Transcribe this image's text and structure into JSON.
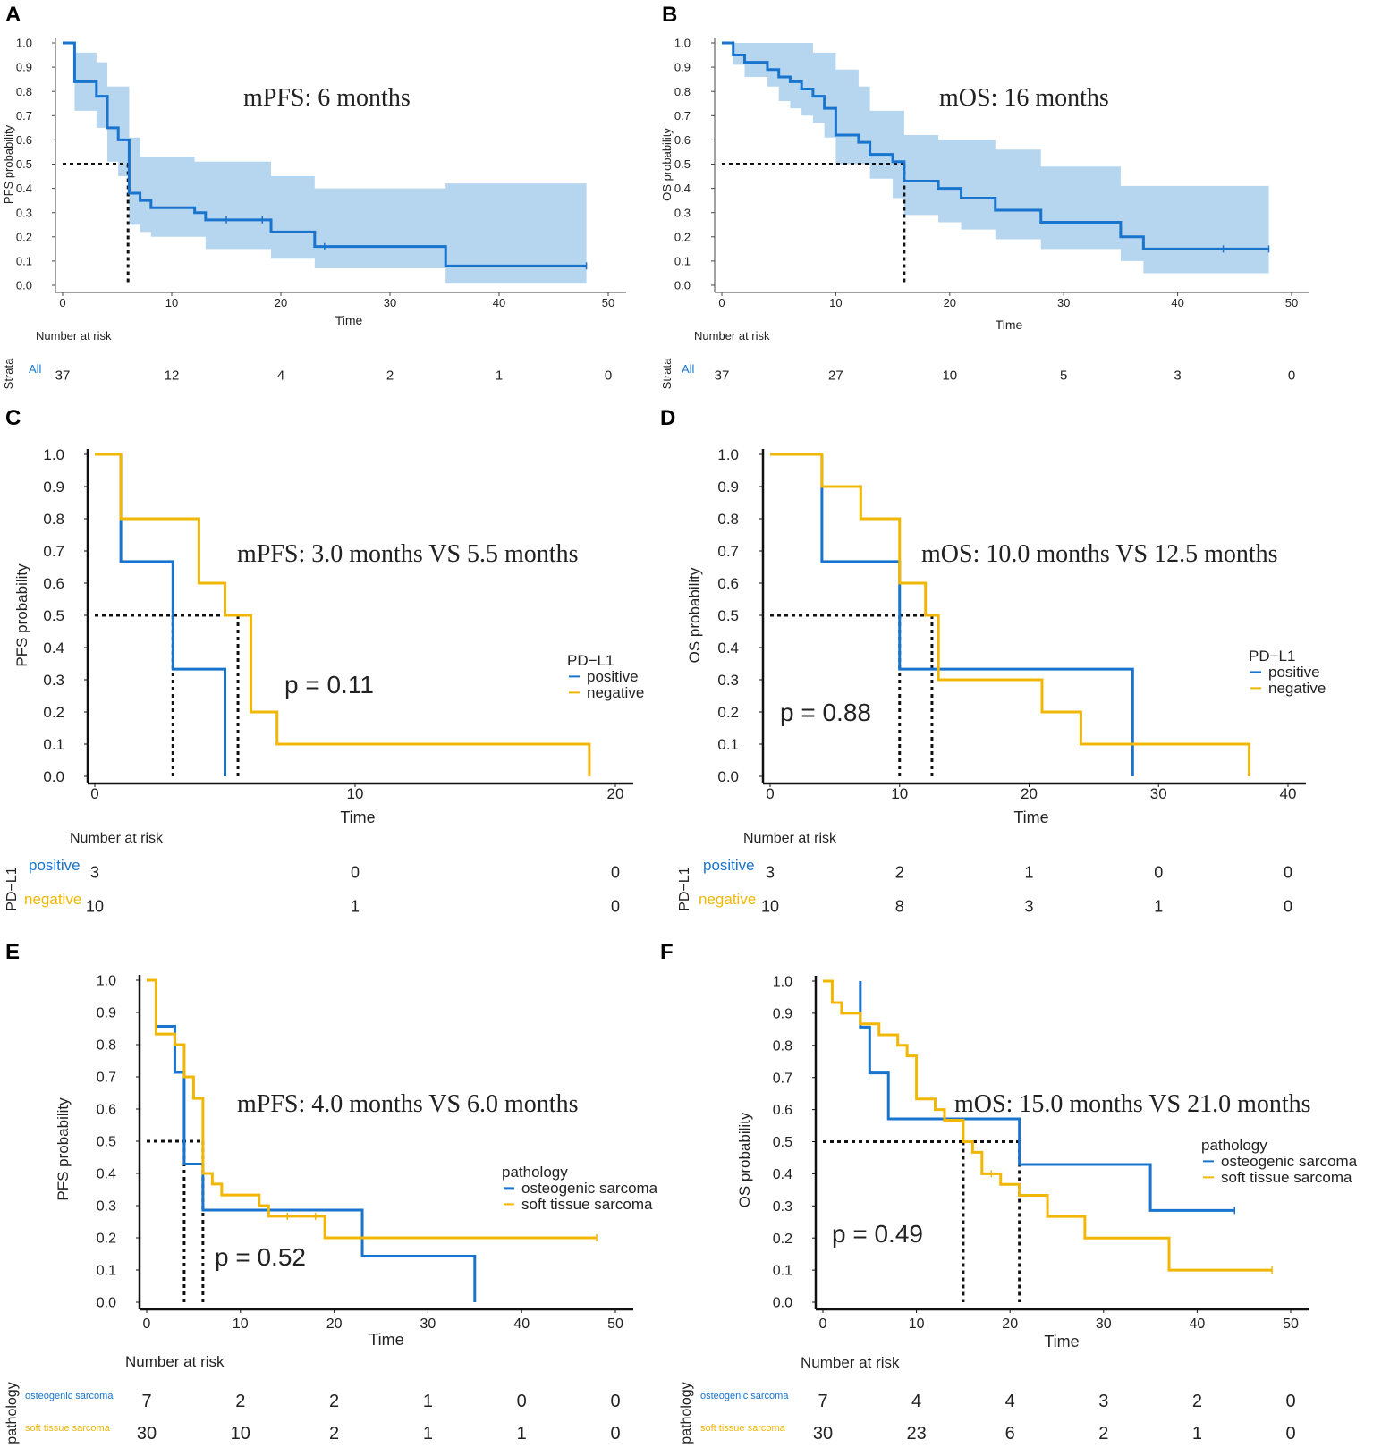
{
  "colors": {
    "blue": "#1874CD",
    "yellow": "#F2B705",
    "band": "#B6D5EF",
    "black": "#111111"
  },
  "chart_data": [
    {
      "id": "A",
      "type": "line",
      "panel_label": "A",
      "title": "",
      "annotation": "mPFS: 6 months",
      "pvalue": "",
      "xlabel": "Time",
      "ylabel": "PFS probability",
      "xlim": [
        0,
        50
      ],
      "ylim": [
        0,
        1
      ],
      "xticks": [
        0,
        10,
        20,
        30,
        40,
        50
      ],
      "yticks": [
        "0.0",
        "0.1",
        "0.2",
        "0.3",
        "0.4",
        "0.5",
        "0.6",
        "0.7",
        "0.8",
        "0.9",
        "1.0"
      ],
      "median_lines": [
        6
      ],
      "legend_title": "",
      "risk_title": "Number at risk",
      "strata_title": "Strata",
      "risk_times": [
        0,
        10,
        20,
        30,
        40,
        50
      ],
      "series": [
        {
          "name": "All",
          "color": "blue",
          "steps": [
            [
              0,
              1.0
            ],
            [
              1.1,
              0.84
            ],
            [
              3.1,
              0.78
            ],
            [
              4.1,
              0.65
            ],
            [
              5.1,
              0.6
            ],
            [
              6.1,
              0.38
            ],
            [
              7.1,
              0.35
            ],
            [
              8.1,
              0.32
            ],
            [
              12.1,
              0.3
            ],
            [
              13.1,
              0.27
            ],
            [
              19.1,
              0.22
            ],
            [
              23.1,
              0.16
            ],
            [
              35.1,
              0.08
            ],
            [
              48,
              0.08
            ]
          ],
          "ci_upper": [
            [
              0,
              1.0
            ],
            [
              1.1,
              0.96
            ],
            [
              3.1,
              0.92
            ],
            [
              4.1,
              0.82
            ],
            [
              6.1,
              0.61
            ],
            [
              7.1,
              0.53
            ],
            [
              12.1,
              0.51
            ],
            [
              19.1,
              0.45
            ],
            [
              23.1,
              0.4
            ],
            [
              35.1,
              0.42
            ],
            [
              48,
              0.42
            ]
          ],
          "ci_lower": [
            [
              0,
              1.0
            ],
            [
              1.1,
              0.72
            ],
            [
              3.1,
              0.65
            ],
            [
              4.1,
              0.51
            ],
            [
              5.1,
              0.45
            ],
            [
              6.1,
              0.25
            ],
            [
              7.1,
              0.22
            ],
            [
              8.1,
              0.2
            ],
            [
              13.1,
              0.15
            ],
            [
              19.1,
              0.11
            ],
            [
              23.1,
              0.07
            ],
            [
              35.1,
              0.01
            ],
            [
              48,
              0.01
            ]
          ],
          "censor_marks": [
            [
              15,
              0.27
            ],
            [
              18.3,
              0.27
            ],
            [
              24,
              0.16
            ],
            [
              48,
              0.08
            ]
          ],
          "risk": [
            "37",
            "12",
            "4",
            "2",
            "1",
            "0"
          ]
        }
      ]
    },
    {
      "id": "B",
      "type": "line",
      "panel_label": "B",
      "title": "",
      "annotation": "mOS: 16 months",
      "pvalue": "",
      "xlabel": "Time",
      "ylabel": "OS probability",
      "xlim": [
        0,
        50
      ],
      "ylim": [
        0,
        1
      ],
      "xticks": [
        0,
        10,
        20,
        30,
        40,
        50
      ],
      "yticks": [
        "0.0",
        "0.1",
        "0.2",
        "0.3",
        "0.4",
        "0.5",
        "0.6",
        "0.7",
        "0.8",
        "0.9",
        "1.0"
      ],
      "median_lines": [
        16
      ],
      "legend_title": "",
      "risk_title": "Number at risk",
      "strata_title": "Strata",
      "risk_times": [
        0,
        10,
        20,
        30,
        40,
        50
      ],
      "series": [
        {
          "name": "All",
          "color": "blue",
          "steps": [
            [
              0,
              1.0
            ],
            [
              1,
              0.95
            ],
            [
              2,
              0.92
            ],
            [
              4,
              0.89
            ],
            [
              5,
              0.86
            ],
            [
              6,
              0.84
            ],
            [
              7,
              0.81
            ],
            [
              8,
              0.78
            ],
            [
              9,
              0.73
            ],
            [
              10,
              0.62
            ],
            [
              12,
              0.59
            ],
            [
              13,
              0.54
            ],
            [
              15,
              0.51
            ],
            [
              16,
              0.43
            ],
            [
              19,
              0.4
            ],
            [
              21,
              0.36
            ],
            [
              24,
              0.31
            ],
            [
              28,
              0.26
            ],
            [
              35,
              0.2
            ],
            [
              37,
              0.15
            ],
            [
              48,
              0.15
            ]
          ],
          "ci_upper": [
            [
              0,
              1.0
            ],
            [
              6,
              1.0
            ],
            [
              8,
              0.96
            ],
            [
              10,
              0.89
            ],
            [
              12,
              0.82
            ],
            [
              13,
              0.72
            ],
            [
              16,
              0.62
            ],
            [
              19,
              0.6
            ],
            [
              24,
              0.56
            ],
            [
              28,
              0.49
            ],
            [
              35,
              0.41
            ],
            [
              48,
              0.41
            ]
          ],
          "ci_lower": [
            [
              0,
              1.0
            ],
            [
              1,
              0.91
            ],
            [
              2,
              0.86
            ],
            [
              4,
              0.82
            ],
            [
              5,
              0.76
            ],
            [
              6,
              0.73
            ],
            [
              7,
              0.7
            ],
            [
              8,
              0.67
            ],
            [
              9,
              0.61
            ],
            [
              10,
              0.5
            ],
            [
              13,
              0.44
            ],
            [
              15,
              0.36
            ],
            [
              16,
              0.29
            ],
            [
              19,
              0.26
            ],
            [
              21,
              0.23
            ],
            [
              24,
              0.19
            ],
            [
              28,
              0.15
            ],
            [
              35,
              0.1
            ],
            [
              37,
              0.05
            ],
            [
              48,
              0.05
            ]
          ],
          "censor_marks": [
            [
              44,
              0.15
            ],
            [
              48,
              0.15
            ]
          ],
          "risk": [
            "37",
            "27",
            "10",
            "5",
            "3",
            "0"
          ]
        }
      ]
    },
    {
      "id": "C",
      "type": "line",
      "panel_label": "C",
      "title": "",
      "annotation": "mPFS: 3.0 months VS 5.5 months",
      "pvalue": "p = 0.11",
      "xlabel": "Time",
      "ylabel": "PFS probability",
      "xlim": [
        0,
        20
      ],
      "ylim": [
        0,
        1
      ],
      "xticks": [
        0,
        10,
        20
      ],
      "yticks": [
        "0.0",
        "0.1",
        "0.2",
        "0.3",
        "0.4",
        "0.5",
        "0.6",
        "0.7",
        "0.8",
        "0.9",
        "1.0"
      ],
      "median_lines": [
        3.0,
        5.5
      ],
      "legend_title": "PD−L1",
      "risk_title": "Number at risk",
      "strata_title": "PD−L1",
      "risk_times": [
        0,
        10,
        20
      ],
      "series": [
        {
          "name": "positive",
          "color": "blue",
          "steps": [
            [
              1,
              1.0
            ],
            [
              1,
              0.667
            ],
            [
              3,
              0.333
            ],
            [
              5,
              0.0
            ]
          ],
          "risk": [
            "3",
            "0",
            "0"
          ]
        },
        {
          "name": "negative",
          "color": "yellow",
          "steps": [
            [
              0,
              1.0
            ],
            [
              1,
              0.8
            ],
            [
              4,
              0.6
            ],
            [
              5,
              0.5
            ],
            [
              6,
              0.2
            ],
            [
              7,
              0.1
            ],
            [
              19,
              0.0
            ]
          ],
          "risk": [
            "10",
            "1",
            "0"
          ]
        }
      ]
    },
    {
      "id": "D",
      "type": "line",
      "panel_label": "D",
      "title": "",
      "annotation": "mOS: 10.0 months VS 12.5 months",
      "pvalue": "p = 0.88",
      "xlabel": "Time",
      "ylabel": "OS probability",
      "xlim": [
        0,
        40
      ],
      "ylim": [
        0,
        1
      ],
      "xticks": [
        0,
        10,
        20,
        30,
        40
      ],
      "yticks": [
        "0.0",
        "0.1",
        "0.2",
        "0.3",
        "0.4",
        "0.5",
        "0.6",
        "0.7",
        "0.8",
        "0.9",
        "1.0"
      ],
      "median_lines": [
        10.0,
        12.5
      ],
      "legend_title": "PD−L1",
      "risk_title": "Number at risk",
      "strata_title": "PD−L1",
      "risk_times": [
        0,
        10,
        20,
        30,
        40
      ],
      "series": [
        {
          "name": "positive",
          "color": "blue",
          "steps": [
            [
              4,
              1.0
            ],
            [
              4,
              0.667
            ],
            [
              10,
              0.333
            ],
            [
              28,
              0.0
            ]
          ],
          "risk": [
            "3",
            "2",
            "1",
            "0",
            "0"
          ]
        },
        {
          "name": "negative",
          "color": "yellow",
          "steps": [
            [
              0,
              1.0
            ],
            [
              4,
              0.9
            ],
            [
              7,
              0.8
            ],
            [
              10,
              0.6
            ],
            [
              12,
              0.5
            ],
            [
              13,
              0.3
            ],
            [
              21,
              0.2
            ],
            [
              24,
              0.1
            ],
            [
              37,
              0.0
            ]
          ],
          "risk": [
            "10",
            "8",
            "3",
            "1",
            "0"
          ]
        }
      ]
    },
    {
      "id": "E",
      "type": "line",
      "panel_label": "E",
      "title": "",
      "annotation": "mPFS: 4.0 months VS 6.0 months",
      "pvalue": "p = 0.52",
      "xlabel": "Time",
      "ylabel": "PFS probability",
      "xlim": [
        0,
        50
      ],
      "ylim": [
        0,
        1
      ],
      "xticks": [
        0,
        10,
        20,
        30,
        40,
        50
      ],
      "yticks": [
        "0.0",
        "0.1",
        "0.2",
        "0.3",
        "0.4",
        "0.5",
        "0.6",
        "0.7",
        "0.8",
        "0.9",
        "1.0"
      ],
      "median_lines": [
        4.0,
        6.0
      ],
      "legend_title": "pathology",
      "risk_title": "Number at risk",
      "strata_title": "pathology",
      "risk_times": [
        0,
        10,
        20,
        30,
        40,
        50
      ],
      "series": [
        {
          "name": "osteogenic sarcoma",
          "color": "blue",
          "steps": [
            [
              1,
              1.0
            ],
            [
              1,
              0.857
            ],
            [
              3,
              0.714
            ],
            [
              4,
              0.429
            ],
            [
              6,
              0.286
            ],
            [
              23,
              0.143
            ],
            [
              35,
              0.0
            ]
          ],
          "censor_marks": [],
          "risk": [
            "7",
            "2",
            "2",
            "1",
            "0",
            "0"
          ]
        },
        {
          "name": "soft tissue sarcoma",
          "color": "yellow",
          "steps": [
            [
              0,
              1.0
            ],
            [
              1,
              0.833
            ],
            [
              3,
              0.8
            ],
            [
              4,
              0.7
            ],
            [
              5,
              0.633
            ],
            [
              6,
              0.4
            ],
            [
              7,
              0.367
            ],
            [
              8,
              0.333
            ],
            [
              12,
              0.3
            ],
            [
              13,
              0.267
            ],
            [
              19,
              0.2
            ],
            [
              48,
              0.2
            ]
          ],
          "censor_marks": [
            [
              15,
              0.267
            ],
            [
              18,
              0.267
            ],
            [
              48,
              0.2
            ]
          ],
          "risk": [
            "30",
            "10",
            "2",
            "1",
            "1",
            "0"
          ]
        }
      ]
    },
    {
      "id": "F",
      "type": "line",
      "panel_label": "F",
      "title": "",
      "annotation": "mOS: 15.0 months VS 21.0 months",
      "pvalue": "p = 0.49",
      "xlabel": "Time",
      "ylabel": "OS probability",
      "xlim": [
        0,
        50
      ],
      "ylim": [
        0,
        1
      ],
      "xticks": [
        0,
        10,
        20,
        30,
        40,
        50
      ],
      "yticks": [
        "0.0",
        "0.1",
        "0.2",
        "0.3",
        "0.4",
        "0.5",
        "0.6",
        "0.7",
        "0.8",
        "0.9",
        "1.0"
      ],
      "median_lines": [
        15.0,
        21.0
      ],
      "legend_title": "pathology",
      "risk_title": "Number at risk",
      "strata_title": "pathology",
      "risk_times": [
        0,
        10,
        20,
        30,
        40,
        50
      ],
      "series": [
        {
          "name": "osteogenic sarcoma",
          "color": "blue",
          "steps": [
            [
              4,
              1.0
            ],
            [
              4,
              0.857
            ],
            [
              5,
              0.714
            ],
            [
              7,
              0.571
            ],
            [
              21,
              0.429
            ],
            [
              35,
              0.286
            ],
            [
              44,
              0.286
            ]
          ],
          "censor_marks": [
            [
              44,
              0.286
            ]
          ],
          "risk": [
            "7",
            "4",
            "4",
            "3",
            "2",
            "0"
          ]
        },
        {
          "name": "soft tissue sarcoma",
          "color": "yellow",
          "steps": [
            [
              0,
              1.0
            ],
            [
              1,
              0.933
            ],
            [
              2,
              0.9
            ],
            [
              4,
              0.867
            ],
            [
              6,
              0.833
            ],
            [
              8,
              0.8
            ],
            [
              9,
              0.767
            ],
            [
              10,
              0.633
            ],
            [
              12,
              0.6
            ],
            [
              13,
              0.567
            ],
            [
              15,
              0.5
            ],
            [
              16,
              0.467
            ],
            [
              17,
              0.4
            ],
            [
              19,
              0.367
            ],
            [
              21,
              0.333
            ],
            [
              24,
              0.267
            ],
            [
              28,
              0.2
            ],
            [
              37,
              0.1
            ],
            [
              48,
              0.1
            ]
          ],
          "censor_marks": [
            [
              18,
              0.4
            ],
            [
              48,
              0.1
            ]
          ],
          "risk": [
            "30",
            "23",
            "6",
            "2",
            "1",
            "0"
          ]
        }
      ]
    }
  ]
}
